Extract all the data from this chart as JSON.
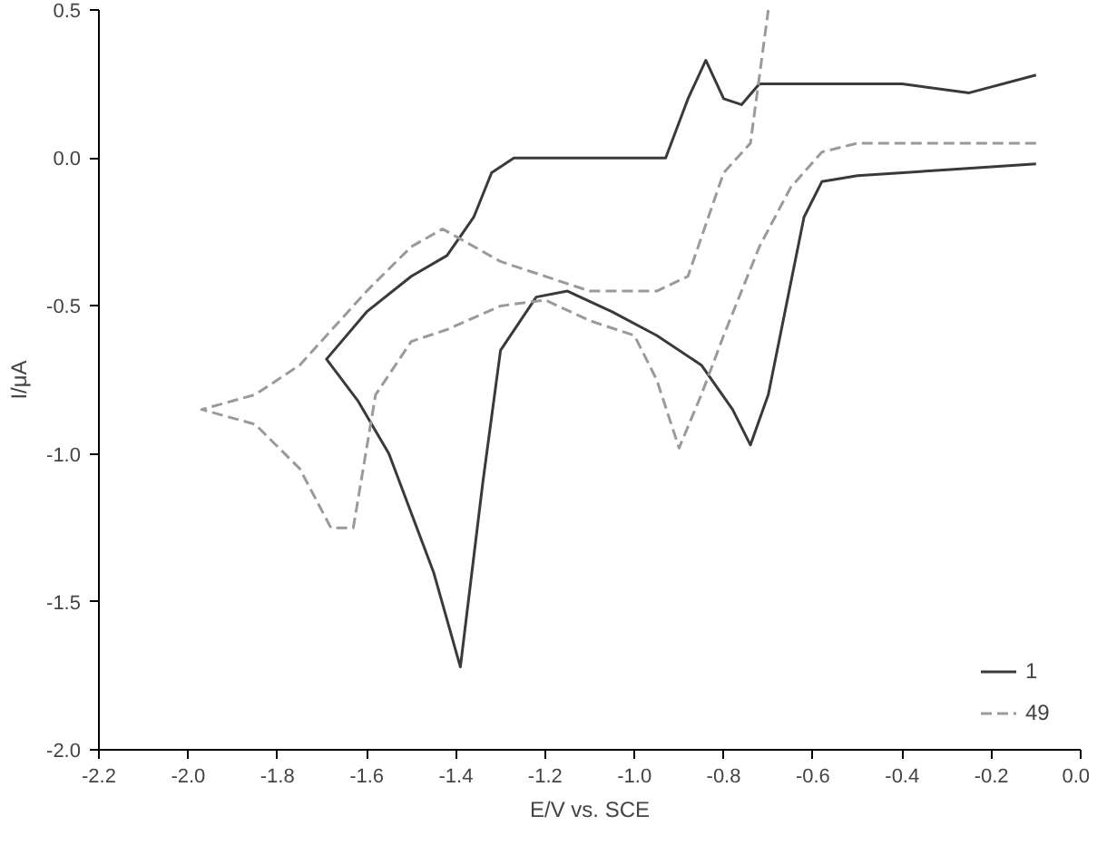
{
  "chart_data": {
    "type": "line",
    "xlabel": "E/V vs. SCE",
    "ylabel": "I/μA",
    "xlim": [
      -2.2,
      0.0
    ],
    "ylim": [
      -2.0,
      0.5
    ],
    "xticks": [
      {
        "value": -2.2,
        "label": "-2.2"
      },
      {
        "value": -2.0,
        "label": "-2.0"
      },
      {
        "value": -1.8,
        "label": "-1.8"
      },
      {
        "value": -1.6,
        "label": "-1.6"
      },
      {
        "value": -1.4,
        "label": "-1.4"
      },
      {
        "value": -1.2,
        "label": "-1.2"
      },
      {
        "value": -1.0,
        "label": "-1.0"
      },
      {
        "value": -0.8,
        "label": "-0.8"
      },
      {
        "value": -0.6,
        "label": "-0.6"
      },
      {
        "value": -0.4,
        "label": "-0.4"
      },
      {
        "value": -0.2,
        "label": "-0.2"
      },
      {
        "value": 0.0,
        "label": "0.0"
      }
    ],
    "yticks": [
      {
        "value": -2.0,
        "label": "-2.0"
      },
      {
        "value": -1.5,
        "label": "-1.5"
      },
      {
        "value": -1.0,
        "label": "-1.0"
      },
      {
        "value": -0.5,
        "label": "-0.5"
      },
      {
        "value": 0.0,
        "label": "0.0"
      },
      {
        "value": 0.5,
        "label": "0.5"
      }
    ],
    "grid": false,
    "legend": "bottom right",
    "series": [
      {
        "name": "1",
        "color": "#3a3a3a",
        "line_style": "solid",
        "x": [
          -0.1,
          -0.3,
          -0.5,
          -0.58,
          -0.62,
          -0.66,
          -0.7,
          -0.74,
          -0.78,
          -0.85,
          -0.95,
          -1.05,
          -1.15,
          -1.22,
          -1.3,
          -1.34,
          -1.39,
          -1.45,
          -1.55,
          -1.62,
          -1.69,
          -1.6,
          -1.5,
          -1.42,
          -1.36,
          -1.32,
          -1.27,
          -1.0,
          -0.93,
          -0.88,
          -0.84,
          -0.8,
          -0.76,
          -0.72,
          -0.4,
          -0.25,
          -0.1
        ],
        "values": [
          -0.02,
          -0.04,
          -0.06,
          -0.08,
          -0.2,
          -0.5,
          -0.8,
          -0.97,
          -0.85,
          -0.7,
          -0.6,
          -0.52,
          -0.45,
          -0.47,
          -0.65,
          -1.1,
          -1.72,
          -1.4,
          -1.0,
          -0.82,
          -0.68,
          -0.52,
          -0.4,
          -0.33,
          -0.2,
          -0.05,
          0.0,
          0.0,
          0.0,
          0.2,
          0.33,
          0.2,
          0.18,
          0.25,
          0.25,
          0.22,
          0.28
        ]
      },
      {
        "name": "49",
        "color": "#9a9a9a",
        "line_style": "dashed",
        "x": [
          -0.1,
          -0.5,
          -0.58,
          -0.65,
          -0.72,
          -0.8,
          -0.85,
          -0.9,
          -0.95,
          -1.0,
          -1.1,
          -1.2,
          -1.3,
          -1.42,
          -1.5,
          -1.58,
          -1.63,
          -1.68,
          -1.75,
          -1.85,
          -1.97,
          -1.85,
          -1.75,
          -1.6,
          -1.5,
          -1.43,
          -1.3,
          -1.1,
          -0.95,
          -0.88,
          -0.8,
          -0.74,
          -0.7
        ],
        "values": [
          0.05,
          0.05,
          0.02,
          -0.1,
          -0.3,
          -0.6,
          -0.8,
          -0.98,
          -0.75,
          -0.6,
          -0.55,
          -0.48,
          -0.5,
          -0.58,
          -0.62,
          -0.8,
          -1.25,
          -1.25,
          -1.05,
          -0.9,
          -0.85,
          -0.8,
          -0.7,
          -0.45,
          -0.3,
          -0.24,
          -0.35,
          -0.45,
          -0.45,
          -0.4,
          -0.05,
          0.05,
          0.5
        ]
      }
    ]
  }
}
